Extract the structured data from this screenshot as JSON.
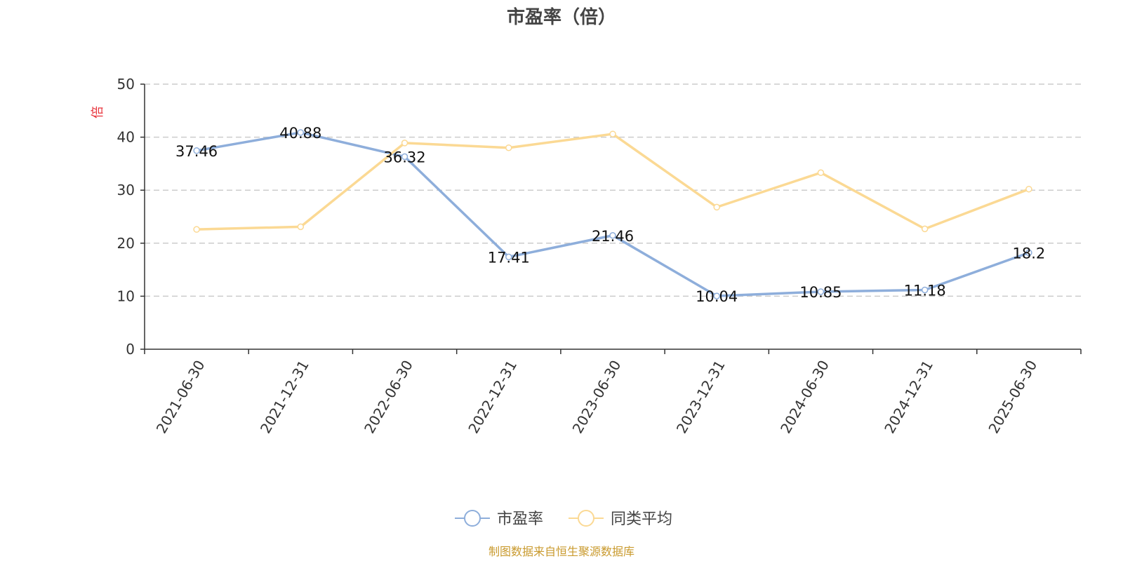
{
  "chart_data": {
    "type": "line",
    "title": "市盈率（倍）",
    "ylabel": "倍",
    "ylim": [
      0,
      50
    ],
    "yticks": [
      0,
      10,
      20,
      30,
      40,
      50
    ],
    "grid": true,
    "categories": [
      "2021-06-30",
      "2021-12-31",
      "2022-06-30",
      "2022-12-31",
      "2023-06-30",
      "2023-12-31",
      "2024-06-30",
      "2024-12-31",
      "2025-06-30"
    ],
    "series": [
      {
        "name": "市盈率",
        "color": "#8eaedb",
        "show_labels": true,
        "values": [
          37.46,
          40.88,
          36.32,
          17.41,
          21.46,
          10.04,
          10.85,
          11.18,
          18.2
        ]
      },
      {
        "name": "同类平均",
        "color": "#fbd994",
        "show_labels": false,
        "values": [
          22.6,
          23.1,
          38.9,
          38.0,
          40.6,
          26.8,
          33.3,
          22.7,
          30.2
        ]
      }
    ],
    "legend_position": "bottom-center"
  },
  "source_note": "制图数据来自恒生聚源数据库"
}
